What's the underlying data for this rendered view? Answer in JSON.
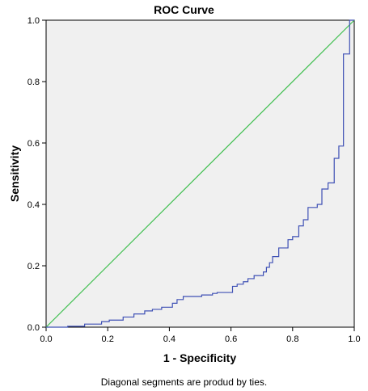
{
  "chart_data": {
    "type": "line",
    "title": "ROC Curve",
    "xlabel": "1 - Specificity",
    "ylabel": "Sensitivity",
    "xlim": [
      0.0,
      1.0
    ],
    "ylim": [
      0.0,
      1.0
    ],
    "x_ticks": [
      "0.0",
      "0.2",
      "0.4",
      "0.6",
      "0.8",
      "1.0"
    ],
    "y_ticks": [
      "0.0",
      "0.2",
      "0.4",
      "0.6",
      "0.8",
      "1.0"
    ],
    "grid": false,
    "legend": "none",
    "series": [
      {
        "color": "#3f51b5",
        "points": [
          [
            0.0,
            0.0
          ],
          [
            0.07,
            0.0
          ],
          [
            0.07,
            0.003
          ],
          [
            0.125,
            0.003
          ],
          [
            0.125,
            0.01
          ],
          [
            0.18,
            0.01
          ],
          [
            0.18,
            0.018
          ],
          [
            0.205,
            0.018
          ],
          [
            0.205,
            0.023
          ],
          [
            0.25,
            0.023
          ],
          [
            0.25,
            0.033
          ],
          [
            0.285,
            0.033
          ],
          [
            0.285,
            0.043
          ],
          [
            0.32,
            0.043
          ],
          [
            0.32,
            0.053
          ],
          [
            0.345,
            0.053
          ],
          [
            0.345,
            0.058
          ],
          [
            0.375,
            0.058
          ],
          [
            0.375,
            0.065
          ],
          [
            0.41,
            0.065
          ],
          [
            0.41,
            0.078
          ],
          [
            0.425,
            0.078
          ],
          [
            0.425,
            0.09
          ],
          [
            0.445,
            0.09
          ],
          [
            0.445,
            0.1
          ],
          [
            0.505,
            0.1
          ],
          [
            0.505,
            0.105
          ],
          [
            0.54,
            0.105
          ],
          [
            0.54,
            0.11
          ],
          [
            0.555,
            0.11
          ],
          [
            0.555,
            0.113
          ],
          [
            0.605,
            0.113
          ],
          [
            0.605,
            0.133
          ],
          [
            0.62,
            0.133
          ],
          [
            0.62,
            0.14
          ],
          [
            0.64,
            0.14
          ],
          [
            0.64,
            0.148
          ],
          [
            0.655,
            0.148
          ],
          [
            0.655,
            0.158
          ],
          [
            0.675,
            0.158
          ],
          [
            0.675,
            0.168
          ],
          [
            0.705,
            0.168
          ],
          [
            0.705,
            0.18
          ],
          [
            0.715,
            0.18
          ],
          [
            0.715,
            0.195
          ],
          [
            0.725,
            0.195
          ],
          [
            0.725,
            0.21
          ],
          [
            0.735,
            0.21
          ],
          [
            0.735,
            0.23
          ],
          [
            0.755,
            0.23
          ],
          [
            0.755,
            0.258
          ],
          [
            0.785,
            0.258
          ],
          [
            0.785,
            0.285
          ],
          [
            0.8,
            0.285
          ],
          [
            0.8,
            0.295
          ],
          [
            0.82,
            0.295
          ],
          [
            0.82,
            0.33
          ],
          [
            0.835,
            0.33
          ],
          [
            0.835,
            0.35
          ],
          [
            0.85,
            0.35
          ],
          [
            0.85,
            0.39
          ],
          [
            0.88,
            0.39
          ],
          [
            0.88,
            0.4
          ],
          [
            0.895,
            0.4
          ],
          [
            0.895,
            0.45
          ],
          [
            0.915,
            0.45
          ],
          [
            0.915,
            0.47
          ],
          [
            0.935,
            0.47
          ],
          [
            0.935,
            0.55
          ],
          [
            0.95,
            0.55
          ],
          [
            0.95,
            0.59
          ],
          [
            0.965,
            0.59
          ],
          [
            0.965,
            0.89
          ],
          [
            0.985,
            0.89
          ],
          [
            0.985,
            1.0
          ],
          [
            1.0,
            1.0
          ]
        ]
      },
      {
        "color": "#3fbf4f",
        "points": [
          [
            0.0,
            0.0
          ],
          [
            1.0,
            1.0
          ]
        ]
      }
    ]
  },
  "footnote": "Diagonal segments are produd by ties."
}
